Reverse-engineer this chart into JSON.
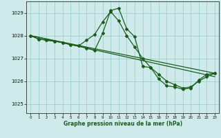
{
  "xlabel": "Graphe pression niveau de la mer (hPa)",
  "background_color": "#ceeaea",
  "grid_color": "#9ecece",
  "line_color": "#1a5c1a",
  "ylim": [
    1024.6,
    1029.5
  ],
  "xlim": [
    -0.5,
    23.5
  ],
  "yticks": [
    1025,
    1026,
    1027,
    1028,
    1029
  ],
  "xticks": [
    0,
    1,
    2,
    3,
    4,
    5,
    6,
    7,
    8,
    9,
    10,
    11,
    12,
    13,
    14,
    15,
    16,
    17,
    18,
    19,
    20,
    21,
    22,
    23
  ],
  "line1_x": [
    0,
    1,
    2,
    3,
    4,
    5,
    6,
    7,
    8,
    9,
    10,
    11,
    12,
    13,
    14,
    15,
    16,
    17,
    18,
    19,
    20,
    21,
    22,
    23
  ],
  "line1_y": [
    1028.0,
    1027.85,
    1027.8,
    1027.75,
    1027.7,
    1027.6,
    1027.55,
    1027.45,
    1027.35,
    1028.1,
    1029.1,
    1029.2,
    1028.3,
    1027.95,
    1026.65,
    1026.6,
    1026.1,
    1025.8,
    1025.75,
    1025.65,
    1025.7,
    1026.05,
    1026.3,
    1026.35
  ],
  "line2_x": [
    0,
    1,
    2,
    3,
    4,
    5,
    6,
    7,
    8,
    9,
    10,
    11,
    12,
    13,
    14,
    15,
    16,
    17,
    18,
    19,
    20,
    21,
    22,
    23
  ],
  "line2_y": [
    1028.0,
    1027.85,
    1027.8,
    1027.75,
    1027.7,
    1027.6,
    1027.55,
    1027.8,
    1028.05,
    1028.6,
    1029.05,
    1028.65,
    1028.0,
    1027.5,
    1027.0,
    1026.6,
    1026.3,
    1026.0,
    1025.85,
    1025.7,
    1025.75,
    1026.0,
    1026.2,
    1026.35
  ],
  "line3_x": [
    0,
    23
  ],
  "line3_y": [
    1028.0,
    1026.2
  ],
  "line4_x": [
    0,
    23
  ],
  "line4_y": [
    1028.0,
    1026.35
  ]
}
